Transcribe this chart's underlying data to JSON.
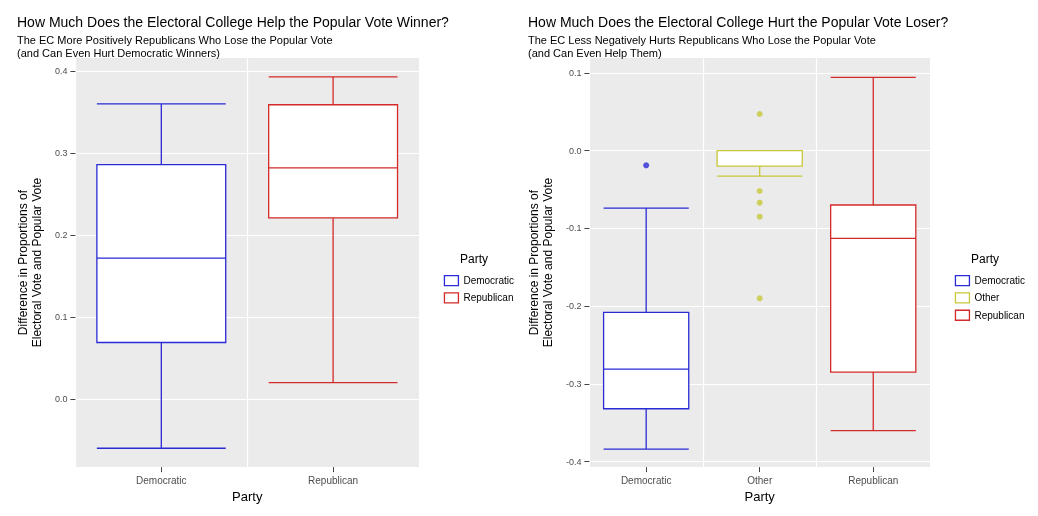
{
  "chart_data": [
    {
      "type": "box",
      "title": "How Much Does the Electoral College Help the Popular Vote Winner?",
      "subtitle": "The EC More Positively Republicans Who Lose the Popular Vote\n(and Can Even Hurt Democratic Winners)",
      "xlabel": "Party",
      "ylabel": "Difference in Proportions of\nElectoral Vote and Popular Vote",
      "legend_title": "Party",
      "legend": "right",
      "grid": true,
      "categories": [
        "Democratic",
        "Republican"
      ],
      "series": [
        {
          "name": "Democratic",
          "color": "#2a2ad6",
          "boxes": [
            {
              "low": -0.06,
              "q1": 0.069,
              "median": 0.172,
              "q3": 0.286,
              "high": 0.36
            },
            null
          ]
        },
        {
          "name": "Republican",
          "color": "#d42a2a",
          "boxes": [
            null,
            {
              "low": 0.02,
              "q1": 0.221,
              "median": 0.282,
              "q3": 0.359,
              "high": 0.393
            }
          ]
        }
      ],
      "ylim": [
        -0.083,
        0.416
      ],
      "yticks": [
        {
          "value": 0,
          "label": "0.0"
        },
        0.1,
        0.2,
        0.3,
        0.4
      ]
    },
    {
      "type": "box",
      "title": "How Much Does the Electoral College Hurt the Popular Vote Loser?",
      "subtitle": "The EC Less Negatively Hurts Republicans Who Lose the Popular Vote\n(and Can Even Help Them)",
      "xlabel": "Party",
      "ylabel": "Difference in Proportions of\nElectoral Vote and Popular Vote",
      "legend_title": "Party",
      "legend": "right",
      "grid": true,
      "categories": [
        "Democratic",
        "Other",
        "Republican"
      ],
      "series": [
        {
          "name": "Democratic",
          "color": "#2a2ad6",
          "boxes": [
            {
              "low": -0.384,
              "q1": -0.332,
              "median": -0.281,
              "q3": -0.208,
              "high": -0.074,
              "outliers": [
                -0.019
              ]
            },
            null,
            null
          ]
        },
        {
          "name": "Other",
          "color": "#c8c83a",
          "boxes": [
            null,
            {
              "low": -0.033,
              "q1": -0.02,
              "median": 0,
              "q3": 0,
              "high": 0,
              "outliers": [
                0.047,
                -0.052,
                -0.067,
                -0.085,
                -0.19
              ]
            },
            null
          ]
        },
        {
          "name": "Republican",
          "color": "#d42a2a",
          "boxes": [
            null,
            null,
            {
              "low": -0.36,
              "q1": -0.285,
              "median": -0.113,
              "q3": -0.07,
              "high": 0.094
            }
          ]
        }
      ],
      "ylim": [
        -0.407,
        0.119
      ],
      "yticks": [
        -0.4,
        -0.3,
        -0.2,
        -0.1,
        {
          "value": 0,
          "label": "0.0"
        },
        0.1
      ]
    }
  ]
}
